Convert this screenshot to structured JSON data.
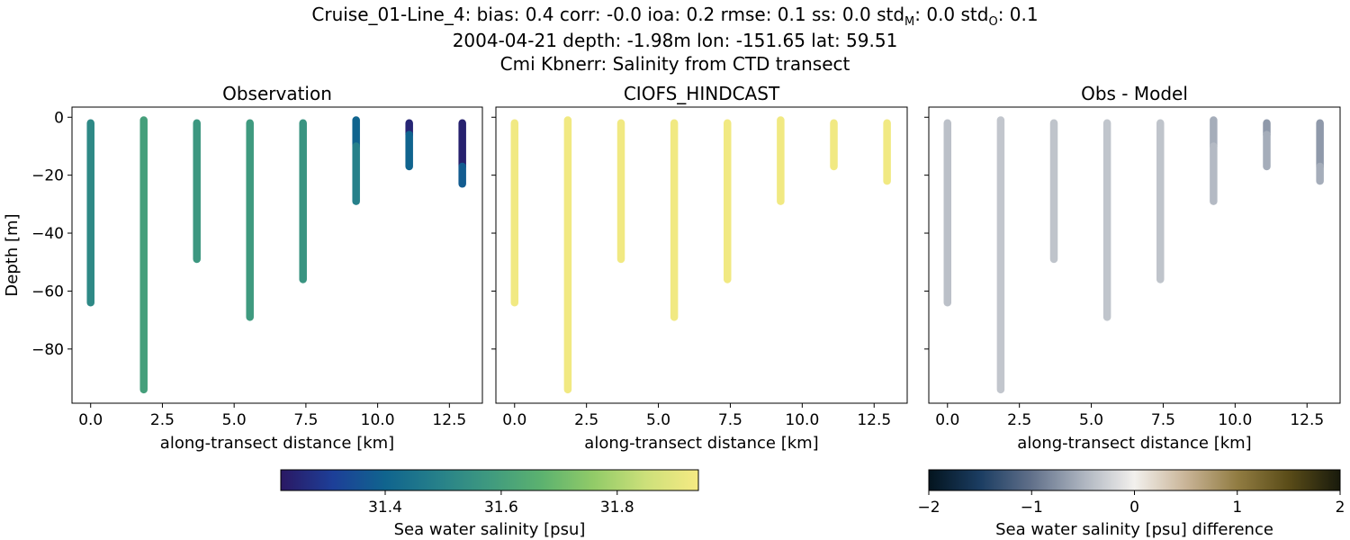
{
  "header": {
    "line1_prefix": "Cruise_01-Line_4: bias: 0.4  corr: -0.0  ioa: 0.2  rmse: 0.1  ss: 0.0  std",
    "line1_sub_m": "M",
    "line1_mid": ": 0.0  std",
    "line1_sub_o": "O",
    "line1_suffix": ": 0.1",
    "line2": "2004-04-21 depth: -1.98m lon: -151.65 lat: 59.51",
    "line3": "Cmi Kbnerr: Salinity from CTD transect"
  },
  "chart_data": [
    {
      "type": "scatter",
      "title": "Observation",
      "xlabel": "along-transect distance [km]",
      "ylabel": "Depth [m]",
      "xlim": [
        -0.65,
        13.65
      ],
      "ylim": [
        -98.7,
        3.5
      ],
      "xticks": [
        0,
        2.5,
        5,
        7.5,
        10,
        12.5
      ],
      "xtick_labels": [
        "0.0",
        "2.5",
        "5.0",
        "7.5",
        "10.0",
        "12.5"
      ],
      "yticks": [
        0,
        -20,
        -40,
        -60,
        -80
      ],
      "ytick_labels": [
        "0",
        "−20",
        "−40",
        "−60",
        "−80"
      ],
      "color_field": "salinity_psu",
      "casts": [
        {
          "x": 0.0,
          "top": -2,
          "bottom": -64,
          "segments": [
            {
              "to": -64,
              "value": 31.52
            }
          ]
        },
        {
          "x": 1.85,
          "top": -1,
          "bottom": -94,
          "segments": [
            {
              "to": -94,
              "value": 31.6
            }
          ]
        },
        {
          "x": 3.7,
          "top": -2,
          "bottom": -49,
          "segments": [
            {
              "to": -49,
              "value": 31.57
            }
          ]
        },
        {
          "x": 5.55,
          "top": -2,
          "bottom": -69,
          "segments": [
            {
              "to": -69,
              "value": 31.58
            }
          ]
        },
        {
          "x": 7.4,
          "top": -2,
          "bottom": -56,
          "segments": [
            {
              "to": -56,
              "value": 31.56
            }
          ]
        },
        {
          "x": 9.25,
          "top": -1,
          "bottom": -29,
          "segments": [
            {
              "to": -10,
              "value": 31.4
            },
            {
              "to": -29,
              "value": 31.49
            }
          ]
        },
        {
          "x": 11.1,
          "top": -2,
          "bottom": -17,
          "segments": [
            {
              "to": -6,
              "value": 31.25
            },
            {
              "to": -17,
              "value": 31.4
            }
          ]
        },
        {
          "x": 12.95,
          "top": -2,
          "bottom": -23,
          "segments": [
            {
              "to": -17,
              "value": 31.24
            },
            {
              "to": -23,
              "value": 31.38
            }
          ]
        }
      ]
    },
    {
      "type": "scatter",
      "title": "CIOFS_HINDCAST",
      "xlabel": "along-transect distance [km]",
      "ylabel": "",
      "xlim": [
        -0.65,
        13.65
      ],
      "ylim": [
        -98.7,
        3.5
      ],
      "xticks": [
        0,
        2.5,
        5,
        7.5,
        10,
        12.5
      ],
      "xtick_labels": [
        "0.0",
        "2.5",
        "5.0",
        "7.5",
        "10.0",
        "12.5"
      ],
      "yticks": [
        0,
        -20,
        -40,
        -60,
        -80
      ],
      "ytick_labels": [],
      "color_field": "salinity_psu",
      "casts": [
        {
          "x": 0.0,
          "top": -2,
          "bottom": -64,
          "segments": [
            {
              "to": -64,
              "value": 31.93
            }
          ]
        },
        {
          "x": 1.85,
          "top": -1,
          "bottom": -94,
          "segments": [
            {
              "to": -94,
              "value": 31.93
            }
          ]
        },
        {
          "x": 3.7,
          "top": -2,
          "bottom": -49,
          "segments": [
            {
              "to": -49,
              "value": 31.93
            }
          ]
        },
        {
          "x": 5.55,
          "top": -2,
          "bottom": -69,
          "segments": [
            {
              "to": -69,
              "value": 31.93
            }
          ]
        },
        {
          "x": 7.4,
          "top": -2,
          "bottom": -56,
          "segments": [
            {
              "to": -56,
              "value": 31.93
            }
          ]
        },
        {
          "x": 9.25,
          "top": -1,
          "bottom": -29,
          "segments": [
            {
              "to": -29,
              "value": 31.93
            }
          ]
        },
        {
          "x": 11.1,
          "top": -2,
          "bottom": -17,
          "segments": [
            {
              "to": -17,
              "value": 31.93
            }
          ]
        },
        {
          "x": 12.95,
          "top": -2,
          "bottom": -22,
          "segments": [
            {
              "to": -22,
              "value": 31.93
            }
          ]
        }
      ]
    },
    {
      "type": "scatter",
      "title": "Obs - Model",
      "xlabel": "along-transect distance [km]",
      "ylabel": "",
      "xlim": [
        -0.65,
        13.65
      ],
      "ylim": [
        -98.7,
        3.5
      ],
      "xticks": [
        0,
        2.5,
        5,
        7.5,
        10,
        12.5
      ],
      "xtick_labels": [
        "0.0",
        "2.5",
        "5.0",
        "7.5",
        "10.0",
        "12.5"
      ],
      "yticks": [
        0,
        -20,
        -40,
        -60,
        -80
      ],
      "ytick_labels": [],
      "color_field": "salinity_difference_psu",
      "casts": [
        {
          "x": 0.0,
          "top": -2,
          "bottom": -64,
          "segments": [
            {
              "to": -64,
              "value": -0.4
            }
          ]
        },
        {
          "x": 1.85,
          "top": -1,
          "bottom": -94,
          "segments": [
            {
              "to": -94,
              "value": -0.35
            }
          ]
        },
        {
          "x": 3.7,
          "top": -2,
          "bottom": -49,
          "segments": [
            {
              "to": -49,
              "value": -0.37
            }
          ]
        },
        {
          "x": 5.55,
          "top": -2,
          "bottom": -69,
          "segments": [
            {
              "to": -69,
              "value": -0.36
            }
          ]
        },
        {
          "x": 7.4,
          "top": -2,
          "bottom": -56,
          "segments": [
            {
              "to": -56,
              "value": -0.37
            }
          ]
        },
        {
          "x": 9.25,
          "top": -1,
          "bottom": -29,
          "segments": [
            {
              "to": -10,
              "value": -0.55
            },
            {
              "to": -29,
              "value": -0.45
            }
          ]
        },
        {
          "x": 11.1,
          "top": -2,
          "bottom": -17,
          "segments": [
            {
              "to": -6,
              "value": -0.7
            },
            {
              "to": -17,
              "value": -0.55
            }
          ]
        },
        {
          "x": 12.95,
          "top": -2,
          "bottom": -22,
          "segments": [
            {
              "to": -17,
              "value": -0.7
            },
            {
              "to": -22,
              "value": -0.55
            }
          ]
        }
      ]
    }
  ],
  "colorbars": [
    {
      "label": "Sea water salinity [psu]",
      "colormap": "haline",
      "range": [
        31.22,
        31.94
      ],
      "ticks": [
        31.4,
        31.6,
        31.8
      ],
      "tick_labels": [
        "31.4",
        "31.6",
        "31.8"
      ],
      "stops": [
        "#2a1863",
        "#1d3f98",
        "#10648e",
        "#26808a",
        "#3f9a7f",
        "#5cb26f",
        "#92cb68",
        "#cde07a",
        "#f6ea83"
      ]
    },
    {
      "label": "Sea water salinity [psu] difference",
      "colormap": "diff",
      "range": [
        -2,
        2
      ],
      "ticks": [
        -2,
        -1,
        0,
        1,
        2
      ],
      "tick_labels": [
        "−2",
        "−1",
        "0",
        "1",
        "2"
      ],
      "stops": [
        "#03141e",
        "#1b3d62",
        "#61708a",
        "#adb4bf",
        "#f2f0ed",
        "#c9b497",
        "#917c42",
        "#5a4c18",
        "#181a0c"
      ]
    }
  ]
}
